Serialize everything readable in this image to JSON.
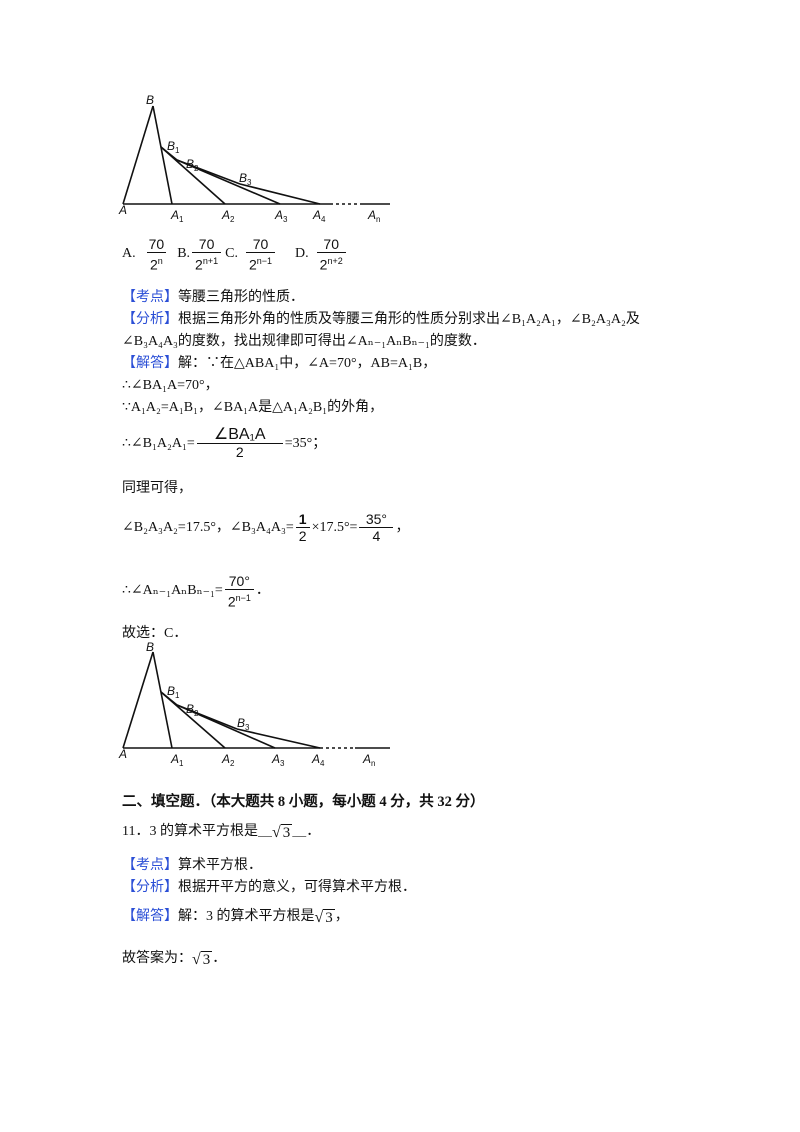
{
  "figure_labels": {
    "B": "B",
    "B1": "B",
    "B1s": "1",
    "B2": "B",
    "B2s": "2",
    "B3": "B",
    "B3s": "3",
    "A": "A",
    "A1": "A",
    "A1s": "1",
    "A2": "A",
    "A2s": "2",
    "A3": "A",
    "A3s": "3",
    "A4": "A",
    "A4s": "4",
    "An": "A",
    "Ans": "n"
  },
  "options": {
    "a_label": "A.",
    "a_num": "70",
    "a_den": "2",
    "a_sup": "n",
    "b_label": "B.",
    "b_num": "70",
    "b_den": "2",
    "b_sup": "n+1",
    "c_label": "C.",
    "c_num": "70",
    "c_den": "2",
    "c_sup": "n−1",
    "d_label": "D.",
    "d_num": "70",
    "d_den": "2",
    "d_sup": "n+2"
  },
  "q10": {
    "kaodian_tag": "【考点】",
    "kaodian_text": "等腰三角形的性质．",
    "fenxi_tag": "【分析】",
    "fenxi_line1": "根据三角形外角的性质及等腰三角形的性质分别求出∠B₁A₂A₁，∠B₂A₃A₂及",
    "fenxi_line2": "∠B₃A₄A₃的度数，找出规律即可得出∠Aₙ₋₁AₙBₙ₋₁的度数．",
    "jieda_tag": "【解答】",
    "jieda_line1": "解：∵在△ABA₁中，∠A=70°，AB=A₁B，",
    "line2": "∴∠BA₁A=70°，",
    "line3": "∵A₁A₂=A₁B₁，∠BA₁A是△A₁A₂B₁的外角，",
    "line4_pre": "∴∠B₁A₂A₁=",
    "line4_num": "∠BA₁A",
    "line4_den": "2",
    "line4_post": "=35°；",
    "line5": "同理可得，",
    "line6_pre": "∠B₂A₃A₂=17.5°，∠B₃A₄A₃=",
    "line6_num": "1",
    "line6_den": "2",
    "line6_mid": "×17.5°=",
    "line6_num2": "35°",
    "line6_den2": "4",
    "line6_post": "，",
    "line7_pre": "∴∠Aₙ₋₁AₙBₙ₋₁=",
    "line7_num": "70°",
    "line7_den": "2",
    "line7_sup": "n−1",
    "line7_post": "．",
    "answer": "故选：C．"
  },
  "section2": {
    "heading": "二、填空题．（本大题共 8 小题，每小题 4 分，共 32 分）"
  },
  "q11": {
    "stem_pre": "11．3 的算术平方根是",
    "stem_blank_pre": "＿",
    "stem_rad": "3",
    "stem_blank_post": "＿．",
    "kaodian_tag": "【考点】",
    "kaodian_text": "算术平方根．",
    "fenxi_tag": "【分析】",
    "fenxi_text": "根据开平方的意义，可得算术平方根．",
    "jieda_tag": "【解答】",
    "jieda_pre": "解：3 的算术平方根是",
    "jieda_rad": "3",
    "jieda_post": "，",
    "answer_pre": "故答案为：",
    "answer_rad": "3",
    "answer_post": "．"
  }
}
